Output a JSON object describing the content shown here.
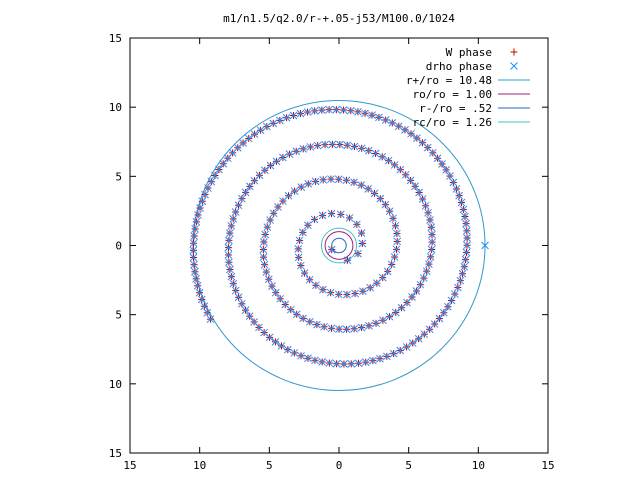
{
  "chart_data": {
    "type": "scatter",
    "title": "m1/n1.5/q2.0/r-+.05-j53/M100.0/1024",
    "xlabel": "",
    "ylabel": "",
    "xlim": [
      -15,
      15
    ],
    "ylim": [
      -15,
      15
    ],
    "x_tick_labels": [
      "15",
      "10",
      "5",
      "0",
      "5",
      "10",
      "15"
    ],
    "y_tick_labels": [
      "15",
      "10",
      "5",
      "0",
      "5",
      "10",
      "15"
    ],
    "grid": false,
    "legend_position": "top-right",
    "series": [
      {
        "name": "W phase",
        "kind": "points",
        "marker": "plus",
        "color": "#cc0000",
        "spiral": {
          "a": 0.6,
          "b": 0.4,
          "turns": 4.0,
          "count": 260,
          "rotation_deg": -150,
          "x_center": 0.0,
          "y_center": 0.0
        }
      },
      {
        "name": "drho phase",
        "kind": "points",
        "marker": "cross",
        "color": "#1e90ff",
        "spiral": {
          "a": 0.6,
          "b": 0.4,
          "turns": 4.0,
          "count": 260,
          "rotation_deg": -150,
          "x_center": 0.0,
          "y_center": 0.0
        },
        "extra_points": [
          [
            10.48,
            0.0
          ]
        ]
      },
      {
        "name": "r+/ro = 10.48",
        "kind": "circle",
        "radius": 10.48,
        "color": "#3399cc"
      },
      {
        "name": "ro/ro = 1.00",
        "kind": "circle",
        "radius": 1.0,
        "color": "#a0207f"
      },
      {
        "name": "r-/ro = .52",
        "kind": "circle",
        "radius": 0.52,
        "color": "#2266cc"
      },
      {
        "name": "rc/ro = 1.26",
        "kind": "circle",
        "radius": 1.26,
        "color": "#40c0c0"
      }
    ]
  }
}
